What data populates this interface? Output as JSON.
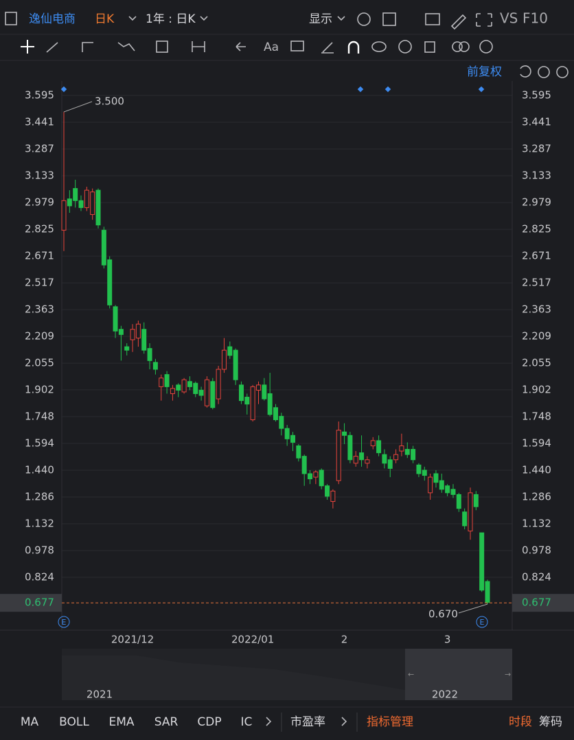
{
  "ui": {
    "stock_name": "逸仙电商",
    "period": "日K",
    "range": "1年 : 日K",
    "display": "显示",
    "vs": "VS",
    "f10": "F10",
    "text_tool": "Aa",
    "adjust": "前复权",
    "indicators": [
      "MA",
      "BOLL",
      "EMA",
      "SAR",
      "CDP",
      "IC"
    ],
    "pe": "市盈率",
    "indicator_manage": "指标管理",
    "session": "时段",
    "chips": "筹码",
    "navigator_labels": [
      "2021",
      "2022"
    ],
    "event_label": "E"
  },
  "chart_data": {
    "type": "candlestick",
    "categories": [
      null,
      null,
      null,
      null,
      null,
      null,
      null,
      null,
      null,
      null,
      null,
      null,
      "2021/12",
      null,
      null,
      null,
      null,
      null,
      null,
      null,
      null,
      null,
      null,
      null,
      null,
      null,
      null,
      null,
      null,
      null,
      null,
      null,
      null,
      "2022/01",
      null,
      null,
      null,
      null,
      null,
      null,
      null,
      null,
      null,
      null,
      null,
      null,
      null,
      null,
      null,
      "2",
      null,
      null,
      null,
      null,
      null,
      null,
      null,
      null,
      null,
      null,
      null,
      null,
      null,
      null,
      null,
      null,
      null,
      "3",
      null,
      null,
      null,
      null,
      null,
      null,
      null
    ],
    "open": [
      2.82,
      3.0,
      3.06,
      2.99,
      2.95,
      2.91,
      3.05,
      2.82,
      2.65,
      2.38,
      2.25,
      2.15,
      2.19,
      2.2,
      2.25,
      2.14,
      2.06,
      1.92,
      1.99,
      1.88,
      1.93,
      1.89,
      1.95,
      1.94,
      1.9,
      1.81,
      1.95,
      1.85,
      2.02,
      2.15,
      2.13,
      1.93,
      1.86,
      1.73,
      1.9,
      1.93,
      1.88,
      1.8,
      1.75,
      1.68,
      1.64,
      1.58,
      1.52,
      1.42,
      1.4,
      1.44,
      1.35,
      1.26,
      1.38,
      1.66,
      1.64,
      1.48,
      1.54,
      1.48,
      1.58,
      1.61,
      1.53,
      1.5,
      1.5,
      1.55,
      1.56,
      1.56,
      1.47,
      1.44,
      1.31,
      1.42,
      1.38,
      1.35,
      1.33,
      1.3,
      1.2,
      1.09,
      1.3,
      1.08,
      0.8
    ],
    "high": [
      3.5,
      3.05,
      3.11,
      3.02,
      3.07,
      3.06,
      3.06,
      2.84,
      2.67,
      2.39,
      2.27,
      2.17,
      2.28,
      2.3,
      2.29,
      2.17,
      2.08,
      1.99,
      2.01,
      1.93,
      1.94,
      1.97,
      1.98,
      1.95,
      1.92,
      1.98,
      1.97,
      2.04,
      2.2,
      2.18,
      2.14,
      1.95,
      1.88,
      1.93,
      1.95,
      1.97,
      2.0,
      1.82,
      1.77,
      1.7,
      1.66,
      1.59,
      1.53,
      1.44,
      1.44,
      1.45,
      1.36,
      1.33,
      1.72,
      1.71,
      1.66,
      1.55,
      1.64,
      1.52,
      1.63,
      1.64,
      1.56,
      1.52,
      1.56,
      1.65,
      1.6,
      1.58,
      1.48,
      1.46,
      1.42,
      1.44,
      1.42,
      1.36,
      1.36,
      1.31,
      1.22,
      1.34,
      1.32,
      1.08,
      0.81
    ],
    "low": [
      2.7,
      2.92,
      2.95,
      2.93,
      2.93,
      2.88,
      2.83,
      2.6,
      2.37,
      2.2,
      2.07,
      2.1,
      2.12,
      2.15,
      2.11,
      2.02,
      1.99,
      1.84,
      1.88,
      1.84,
      1.86,
      1.88,
      1.9,
      1.86,
      1.84,
      1.8,
      1.79,
      1.82,
      2.0,
      2.08,
      1.93,
      1.82,
      1.76,
      1.72,
      1.82,
      1.84,
      1.75,
      1.72,
      1.64,
      1.58,
      1.55,
      1.49,
      1.35,
      1.36,
      1.36,
      1.33,
      1.27,
      1.22,
      1.36,
      1.59,
      1.48,
      1.46,
      1.46,
      1.45,
      1.56,
      1.52,
      1.45,
      1.4,
      1.48,
      1.52,
      1.51,
      1.48,
      1.4,
      1.38,
      1.27,
      1.34,
      1.31,
      1.29,
      1.28,
      1.2,
      1.1,
      1.04,
      1.21,
      0.74,
      0.67
    ],
    "close": [
      2.99,
      2.96,
      2.99,
      2.95,
      3.05,
      3.04,
      2.85,
      2.62,
      2.39,
      2.24,
      2.22,
      2.13,
      2.25,
      2.28,
      2.13,
      2.07,
      2.02,
      1.97,
      1.92,
      1.91,
      1.9,
      1.96,
      1.92,
      1.88,
      1.87,
      1.96,
      1.8,
      2.02,
      2.13,
      2.1,
      1.96,
      1.84,
      1.82,
      1.92,
      1.93,
      1.85,
      1.76,
      1.73,
      1.68,
      1.62,
      1.6,
      1.51,
      1.42,
      1.39,
      1.43,
      1.35,
      1.29,
      1.32,
      1.67,
      1.64,
      1.5,
      1.52,
      1.5,
      1.5,
      1.61,
      1.54,
      1.48,
      1.45,
      1.53,
      1.58,
      1.53,
      1.5,
      1.42,
      1.41,
      1.4,
      1.37,
      1.33,
      1.31,
      1.3,
      1.22,
      1.12,
      1.31,
      1.23,
      0.75,
      0.68
    ],
    "up_color": "#e8453c",
    "down_color": "#22c04e",
    "ylim": [
      0.52,
      3.678
    ],
    "yticks": [
      3.595,
      3.441,
      3.287,
      3.133,
      2.979,
      2.825,
      2.671,
      2.517,
      2.363,
      2.209,
      2.055,
      1.902,
      1.748,
      1.594,
      {
        "value": 1.44,
        "label": "1.440"
      },
      1.286,
      1.132,
      0.978,
      0.824
    ],
    "last_price": 0.677,
    "high_label": {
      "value": 3.5,
      "label": "3.500"
    },
    "low_label": {
      "value": 0.67,
      "label": "0.670"
    },
    "grid": true
  }
}
